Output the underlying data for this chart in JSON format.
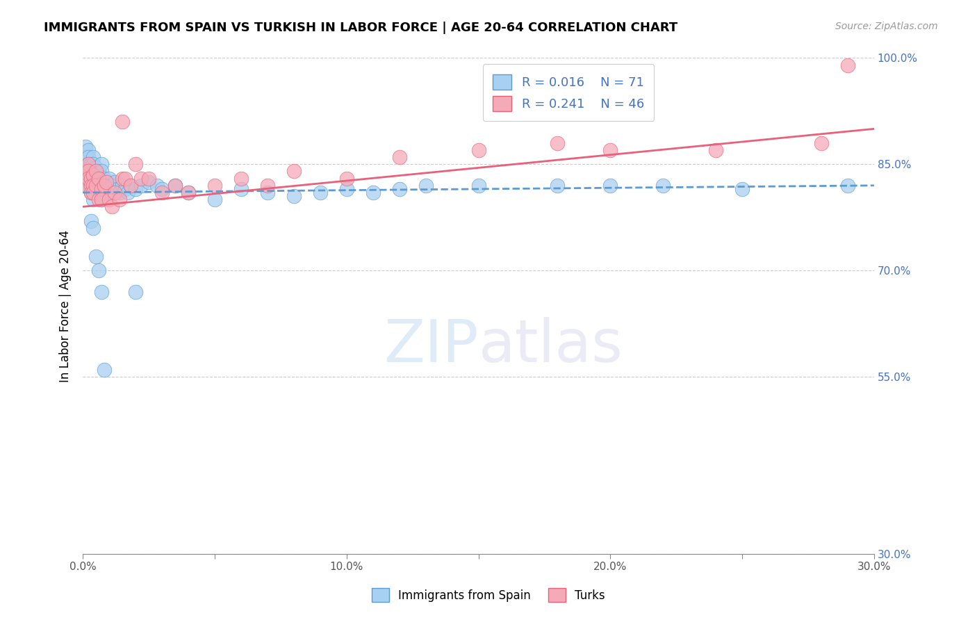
{
  "title": "IMMIGRANTS FROM SPAIN VS TURKISH IN LABOR FORCE | AGE 20-64 CORRELATION CHART",
  "source": "Source: ZipAtlas.com",
  "ylabel": "In Labor Force | Age 20-64",
  "xlim": [
    0.0,
    0.3
  ],
  "ylim": [
    0.3,
    1.0
  ],
  "xticks": [
    0.0,
    0.05,
    0.1,
    0.15,
    0.2,
    0.25,
    0.3
  ],
  "xticklabels": [
    "0.0%",
    "",
    "10.0%",
    "",
    "20.0%",
    "",
    "30.0%"
  ],
  "yticks": [
    0.3,
    0.55,
    0.7,
    0.85,
    1.0
  ],
  "yticklabels": [
    "30.0%",
    "55.0%",
    "70.0%",
    "85.0%",
    "100.0%"
  ],
  "legend_label_blue": "Immigrants from Spain",
  "legend_label_pink": "Turks",
  "R_blue": 0.016,
  "N_blue": 71,
  "R_pink": 0.241,
  "N_pink": 46,
  "blue_color": "#a8d0f0",
  "pink_color": "#f5aab8",
  "blue_line_color": "#5b9bd5",
  "pink_line_color": "#e8607a",
  "legend_text_color": "#4472c4",
  "blue_scatter_x": [
    0.001,
    0.001,
    0.001,
    0.001,
    0.002,
    0.002,
    0.002,
    0.002,
    0.002,
    0.003,
    0.003,
    0.003,
    0.003,
    0.003,
    0.004,
    0.004,
    0.004,
    0.004,
    0.005,
    0.005,
    0.005,
    0.005,
    0.006,
    0.006,
    0.006,
    0.007,
    0.007,
    0.007,
    0.008,
    0.008,
    0.009,
    0.009,
    0.01,
    0.01,
    0.011,
    0.012,
    0.013,
    0.014,
    0.015,
    0.016,
    0.017,
    0.018,
    0.02,
    0.022,
    0.025,
    0.028,
    0.03,
    0.035,
    0.04,
    0.05,
    0.06,
    0.07,
    0.08,
    0.09,
    0.1,
    0.11,
    0.12,
    0.13,
    0.15,
    0.18,
    0.2,
    0.22,
    0.25,
    0.29,
    0.003,
    0.004,
    0.005,
    0.006,
    0.007,
    0.02,
    0.008
  ],
  "blue_scatter_y": [
    0.875,
    0.86,
    0.84,
    0.82,
    0.87,
    0.86,
    0.85,
    0.84,
    0.83,
    0.85,
    0.84,
    0.83,
    0.82,
    0.81,
    0.86,
    0.85,
    0.84,
    0.8,
    0.845,
    0.835,
    0.825,
    0.815,
    0.84,
    0.83,
    0.82,
    0.85,
    0.84,
    0.8,
    0.83,
    0.82,
    0.825,
    0.815,
    0.83,
    0.81,
    0.82,
    0.825,
    0.815,
    0.81,
    0.82,
    0.815,
    0.81,
    0.82,
    0.815,
    0.82,
    0.825,
    0.82,
    0.815,
    0.82,
    0.81,
    0.8,
    0.815,
    0.81,
    0.805,
    0.81,
    0.815,
    0.81,
    0.815,
    0.82,
    0.82,
    0.82,
    0.82,
    0.82,
    0.815,
    0.82,
    0.77,
    0.76,
    0.72,
    0.7,
    0.67,
    0.67,
    0.56
  ],
  "pink_scatter_x": [
    0.001,
    0.001,
    0.001,
    0.002,
    0.002,
    0.002,
    0.003,
    0.003,
    0.003,
    0.004,
    0.004,
    0.004,
    0.005,
    0.005,
    0.006,
    0.006,
    0.007,
    0.007,
    0.008,
    0.009,
    0.01,
    0.011,
    0.012,
    0.014,
    0.015,
    0.016,
    0.018,
    0.02,
    0.022,
    0.025,
    0.03,
    0.035,
    0.04,
    0.05,
    0.06,
    0.07,
    0.08,
    0.1,
    0.12,
    0.15,
    0.18,
    0.2,
    0.24,
    0.28,
    0.29,
    0.015
  ],
  "pink_scatter_y": [
    0.84,
    0.83,
    0.82,
    0.85,
    0.84,
    0.83,
    0.83,
    0.82,
    0.81,
    0.835,
    0.82,
    0.81,
    0.84,
    0.82,
    0.83,
    0.8,
    0.815,
    0.8,
    0.82,
    0.825,
    0.8,
    0.79,
    0.81,
    0.8,
    0.83,
    0.83,
    0.82,
    0.85,
    0.83,
    0.83,
    0.81,
    0.82,
    0.81,
    0.82,
    0.83,
    0.82,
    0.84,
    0.83,
    0.86,
    0.87,
    0.88,
    0.87,
    0.87,
    0.88,
    0.99,
    0.91
  ],
  "blue_trend_x": [
    0.0,
    0.3
  ],
  "blue_trend_y": [
    0.81,
    0.82
  ],
  "pink_trend_x": [
    0.0,
    0.3
  ],
  "pink_trend_y": [
    0.79,
    0.9
  ]
}
